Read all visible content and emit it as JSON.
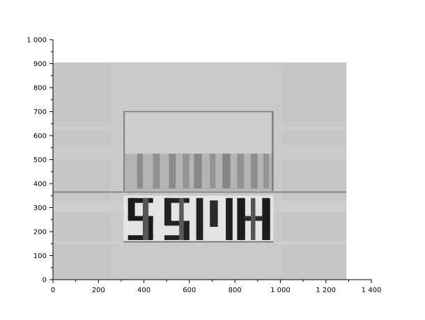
{
  "chart_data": {
    "type": "heatmap",
    "title": "",
    "xlabel": "",
    "ylabel": "",
    "xlim": [
      0,
      1400
    ],
    "ylim": [
      0,
      1000
    ],
    "x_ticks": [
      0,
      200,
      400,
      600,
      800,
      1000,
      1200,
      1400
    ],
    "x_tick_labels": [
      "0",
      "200",
      "400",
      "600",
      "800",
      "1 000",
      "1 200",
      "1 400"
    ],
    "y_ticks": [
      0,
      100,
      200,
      300,
      400,
      500,
      600,
      700,
      800,
      900,
      1000
    ],
    "y_tick_labels": [
      "0",
      "100",
      "200",
      "300",
      "400",
      "500",
      "600",
      "700",
      "800",
      "900",
      "1 000"
    ],
    "image_extent": {
      "x": [
        0,
        1290
      ],
      "y": [
        0,
        905
      ]
    },
    "grid": false,
    "legend": "none",
    "colormap": "grayscale",
    "background_gray": "#c6c6c6",
    "regions": [
      {
        "x": [
          0,
          1290
        ],
        "y": [
          0,
          905
        ],
        "gray": "#c6c6c6"
      },
      {
        "x": [
          250,
          1010
        ],
        "y": [
          0,
          905
        ],
        "gray": "#c9c9c9"
      },
      {
        "x": [
          0,
          1290
        ],
        "y": [
          150,
          160
        ],
        "gray": "#cfcfcf"
      },
      {
        "x": [
          0,
          1290
        ],
        "y": [
          280,
          330
        ],
        "gray": "#cdcdcd"
      },
      {
        "x": [
          0,
          1290
        ],
        "y": [
          620,
          640
        ],
        "gray": "#cbcbcb"
      },
      {
        "x": [
          0,
          1290
        ],
        "y": [
          500,
          560
        ],
        "gray": "#cbcbcb"
      },
      {
        "x": [
          310,
          970
        ],
        "y": [
          370,
          525
        ],
        "gray": "#b4b4b4"
      },
      {
        "x": [
          310,
          970
        ],
        "y": [
          525,
          700
        ],
        "gray": "#cdcdcd"
      },
      {
        "x": [
          310,
          970
        ],
        "y": [
          160,
          350
        ],
        "gray": "#e4e4e4"
      },
      {
        "x": [
          0,
          1290
        ],
        "y": [
          362,
          368
        ],
        "gray": "#8a8a8a"
      },
      {
        "x": [
          310,
          970
        ],
        "y": [
          698,
          702
        ],
        "gray": "#707070"
      },
      {
        "x": [
          310,
          970
        ],
        "y": [
          155,
          160
        ],
        "gray": "#707070"
      },
      {
        "x": [
          310,
          316
        ],
        "y": [
          370,
          700
        ],
        "gray": "#808080"
      },
      {
        "x": [
          962,
          970
        ],
        "y": [
          370,
          700
        ],
        "gray": "#808080"
      }
    ],
    "vertical_streaks": [
      {
        "x": [
          370,
          395
        ],
        "y": [
          380,
          525
        ],
        "gray": "#8c8c8c"
      },
      {
        "x": [
          440,
          470
        ],
        "y": [
          380,
          525
        ],
        "gray": "#909090"
      },
      {
        "x": [
          510,
          540
        ],
        "y": [
          380,
          525
        ],
        "gray": "#8a8a8a"
      },
      {
        "x": [
          570,
          600
        ],
        "y": [
          380,
          525
        ],
        "gray": "#959595"
      },
      {
        "x": [
          620,
          655
        ],
        "y": [
          380,
          525
        ],
        "gray": "#888888"
      },
      {
        "x": [
          690,
          715
        ],
        "y": [
          380,
          525
        ],
        "gray": "#939393"
      },
      {
        "x": [
          745,
          780
        ],
        "y": [
          380,
          525
        ],
        "gray": "#868686"
      },
      {
        "x": [
          810,
          840
        ],
        "y": [
          380,
          525
        ],
        "gray": "#929292"
      },
      {
        "x": [
          870,
          900
        ],
        "y": [
          380,
          525
        ],
        "gray": "#8d8d8d"
      },
      {
        "x": [
          925,
          950
        ],
        "y": [
          380,
          525
        ],
        "gray": "#959595"
      }
    ],
    "letter_strokes": [
      {
        "x": [
          330,
          440
        ],
        "y": [
          320,
          340
        ],
        "gray": "#1a1a1a"
      },
      {
        "x": [
          330,
          360
        ],
        "y": [
          250,
          340
        ],
        "gray": "#1a1a1a"
      },
      {
        "x": [
          330,
          440
        ],
        "y": [
          245,
          265
        ],
        "gray": "#1a1a1a"
      },
      {
        "x": [
          410,
          440
        ],
        "y": [
          170,
          265
        ],
        "gray": "#1a1a1a"
      },
      {
        "x": [
          330,
          440
        ],
        "y": [
          165,
          185
        ],
        "gray": "#1a1a1a"
      },
      {
        "x": [
          490,
          600
        ],
        "y": [
          320,
          340
        ],
        "gray": "#222222"
      },
      {
        "x": [
          490,
          520
        ],
        "y": [
          230,
          340
        ],
        "gray": "#222222"
      },
      {
        "x": [
          490,
          600
        ],
        "y": [
          225,
          245
        ],
        "gray": "#222222"
      },
      {
        "x": [
          570,
          600
        ],
        "y": [
          165,
          245
        ],
        "gray": "#222222"
      },
      {
        "x": [
          490,
          600
        ],
        "y": [
          165,
          185
        ],
        "gray": "#222222"
      },
      {
        "x": [
          630,
          660
        ],
        "y": [
          165,
          340
        ],
        "gray": "#1f1f1f"
      },
      {
        "x": [
          760,
          790
        ],
        "y": [
          165,
          340
        ],
        "gray": "#1f1f1f"
      },
      {
        "x": [
          690,
          725
        ],
        "y": [
          220,
          330
        ],
        "gray": "#2a2a2a"
      },
      {
        "x": [
          810,
          845
        ],
        "y": [
          165,
          340
        ],
        "gray": "#1c1c1c"
      },
      {
        "x": [
          920,
          955
        ],
        "y": [
          165,
          340
        ],
        "gray": "#1c1c1c"
      },
      {
        "x": [
          845,
          920
        ],
        "y": [
          245,
          265
        ],
        "gray": "#2c2c2c"
      },
      {
        "x": [
          395,
          420
        ],
        "y": [
          165,
          340
        ],
        "gray": "#555555"
      },
      {
        "x": [
          555,
          575
        ],
        "y": [
          165,
          340
        ],
        "gray": "#5a5a5a"
      },
      {
        "x": [
          870,
          890
        ],
        "y": [
          165,
          340
        ],
        "gray": "#555555"
      }
    ]
  }
}
